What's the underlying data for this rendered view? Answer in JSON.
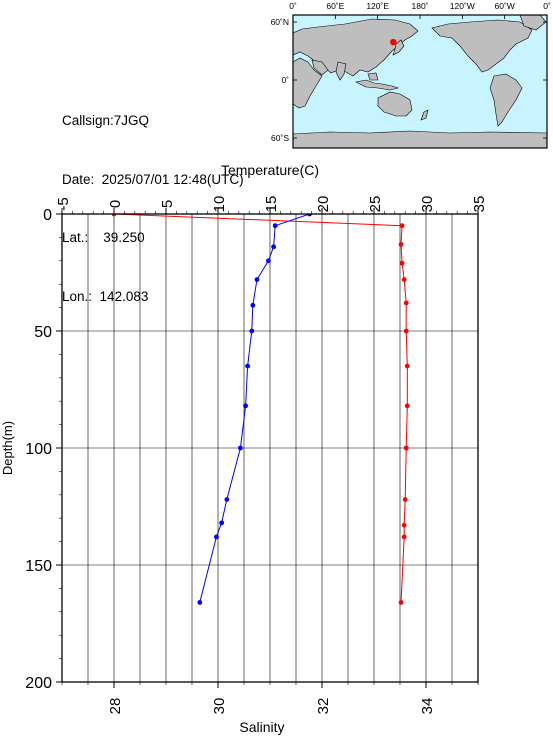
{
  "station": {
    "callsign_label": "Callsign:",
    "callsign": "7JGQ",
    "date_label": "Date:",
    "date": "2025/07/01 12:48(UTC)",
    "lat_label": "Lat.:",
    "lat": "39.250",
    "lon_label": "Lon.:",
    "lon": "142.083"
  },
  "map": {
    "top_ticks": [
      "0˚",
      "60˚E",
      "120˚E",
      "180˚",
      "120˚W",
      "60˚W",
      "0˚"
    ],
    "left_ticks": [
      "60˚N",
      "0˚",
      "60˚S"
    ],
    "ocean_color": "#c8f4ff",
    "land_color": "#bebebe",
    "marker_color": "#ff0000",
    "marker": {
      "lon": 142.083,
      "lat": 39.25
    }
  },
  "chart_data": {
    "type": "line",
    "top_axis_label": "Temperature(C)",
    "bottom_axis_label": "Salinity",
    "left_axis_label": "Depth(m)",
    "temperature_range": [
      -5,
      35
    ],
    "temperature_ticks": [
      "-5",
      "0",
      "5",
      "10",
      "15",
      "20",
      "25",
      "30",
      "35"
    ],
    "salinity_range": [
      27,
      35
    ],
    "salinity_ticks": [
      "28",
      "30",
      "32",
      "34"
    ],
    "depth_range": [
      0,
      200
    ],
    "depth_ticks": [
      "0",
      "50",
      "100",
      "150",
      "200"
    ],
    "grid": true,
    "series": [
      {
        "quantity": "temperature",
        "color": "#ff0000",
        "points": [
          [
            0.0,
            0
          ],
          [
            27.7,
            5
          ],
          [
            27.6,
            13
          ],
          [
            27.7,
            21
          ],
          [
            27.9,
            28
          ],
          [
            28.1,
            38
          ],
          [
            28.1,
            50
          ],
          [
            28.2,
            65
          ],
          [
            28.2,
            82
          ],
          [
            28.1,
            100
          ],
          [
            28.0,
            122
          ],
          [
            27.9,
            133
          ],
          [
            27.9,
            138
          ],
          [
            27.6,
            166
          ]
        ]
      },
      {
        "quantity": "salinity",
        "color": "#0000ff",
        "points": [
          [
            31.76,
            0
          ],
          [
            31.1,
            5
          ],
          [
            31.07,
            14
          ],
          [
            30.97,
            20
          ],
          [
            30.75,
            28
          ],
          [
            30.67,
            39
          ],
          [
            30.65,
            50
          ],
          [
            30.57,
            65
          ],
          [
            30.53,
            82
          ],
          [
            30.43,
            100
          ],
          [
            30.17,
            122
          ],
          [
            30.07,
            132
          ],
          [
            29.97,
            138
          ],
          [
            29.65,
            166
          ]
        ]
      }
    ]
  }
}
